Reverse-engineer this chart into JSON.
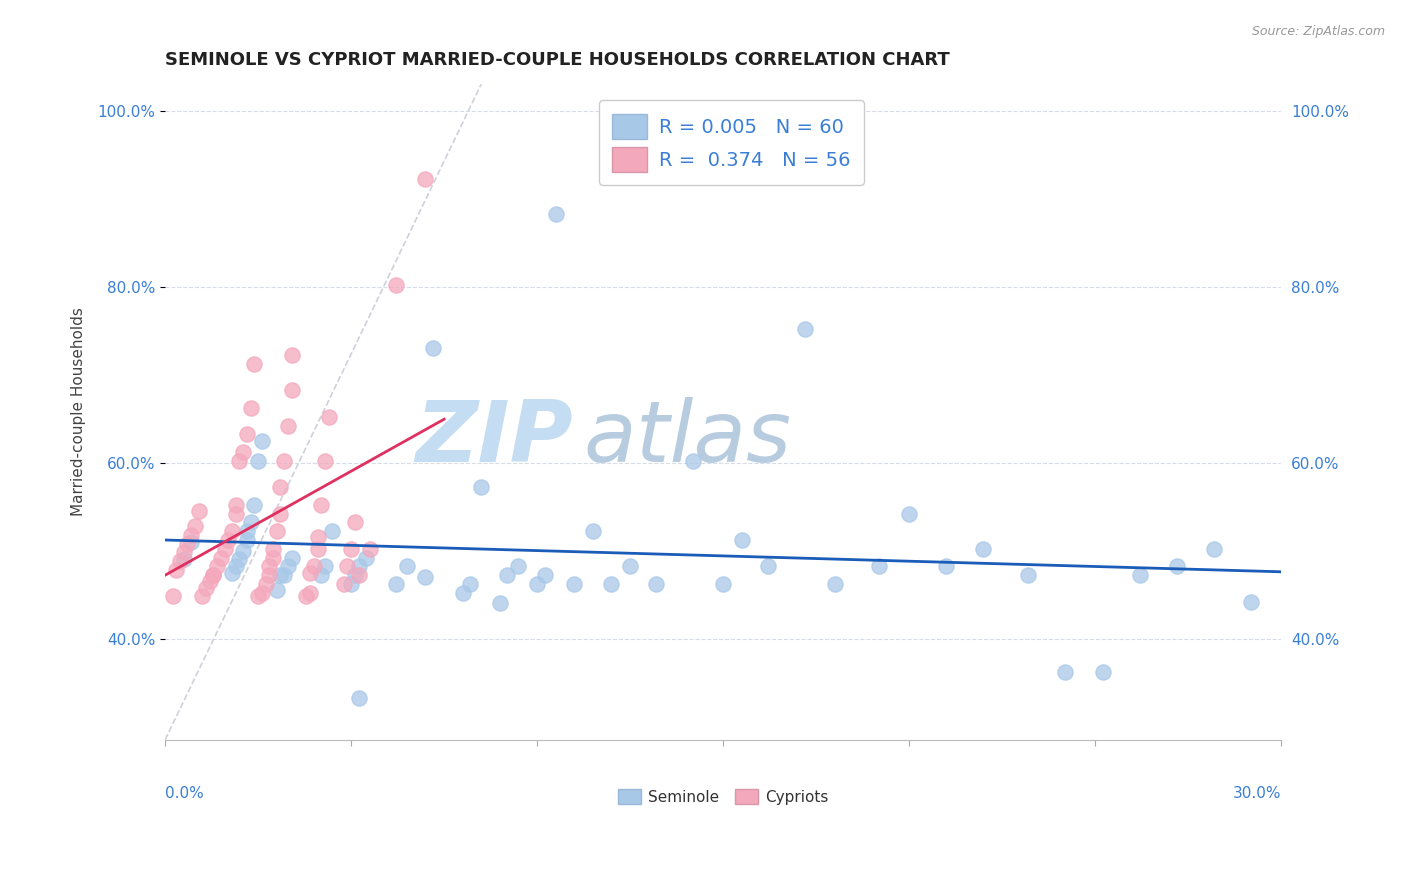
{
  "title": "SEMINOLE VS CYPRIOT MARRIED-COUPLE HOUSEHOLDS CORRELATION CHART",
  "source": "Source: ZipAtlas.com",
  "ylabel": "Married-couple Households",
  "seminole_R": "0.005",
  "seminole_N": "60",
  "cypriot_R": "0.374",
  "cypriot_N": "56",
  "seminole_color": "#a8c8e8",
  "cypriot_color": "#f4a8bc",
  "seminole_line_color": "#1a5cb8",
  "cypriot_line_color": "#e03060",
  "diagonal_color": "#d0d0dc",
  "grid_color": "#d8dce8",
  "watermark_zip_color": "#c8ddf0",
  "watermark_atlas_color": "#b8cce0",
  "background_color": "#ffffff",
  "legend_text_color": "#3a7fd5",
  "xlim": [
    0.0,
    0.3
  ],
  "ylim": [
    0.285,
    1.03
  ],
  "x_tick_positions": [
    0.0,
    0.05,
    0.1,
    0.15,
    0.2,
    0.25,
    0.3
  ],
  "y_tick_positions": [
    0.4,
    0.6,
    0.8,
    1.0
  ],
  "y_tick_labels": [
    "40.0%",
    "60.0%",
    "80.0%",
    "100.0%"
  ],
  "seminole_x": [
    0.005,
    0.007,
    0.018,
    0.019,
    0.02,
    0.021,
    0.022,
    0.022,
    0.023,
    0.024,
    0.025,
    0.026,
    0.03,
    0.031,
    0.032,
    0.033,
    0.034,
    0.042,
    0.043,
    0.045,
    0.05,
    0.051,
    0.052,
    0.054,
    0.062,
    0.065,
    0.07,
    0.072,
    0.08,
    0.082,
    0.085,
    0.09,
    0.092,
    0.095,
    0.1,
    0.102,
    0.11,
    0.115,
    0.12,
    0.125,
    0.132,
    0.142,
    0.15,
    0.155,
    0.162,
    0.172,
    0.18,
    0.192,
    0.2,
    0.21,
    0.22,
    0.232,
    0.242,
    0.252,
    0.262,
    0.272,
    0.282,
    0.292,
    0.052,
    0.105
  ],
  "seminole_y": [
    0.49,
    0.51,
    0.475,
    0.482,
    0.49,
    0.5,
    0.512,
    0.522,
    0.532,
    0.552,
    0.602,
    0.625,
    0.455,
    0.472,
    0.472,
    0.482,
    0.492,
    0.472,
    0.482,
    0.522,
    0.462,
    0.472,
    0.482,
    0.492,
    0.462,
    0.482,
    0.47,
    0.73,
    0.452,
    0.462,
    0.572,
    0.44,
    0.472,
    0.482,
    0.462,
    0.472,
    0.462,
    0.522,
    0.462,
    0.482,
    0.462,
    0.602,
    0.462,
    0.512,
    0.482,
    0.752,
    0.462,
    0.482,
    0.542,
    0.482,
    0.502,
    0.472,
    0.362,
    0.362,
    0.472,
    0.482,
    0.502,
    0.442,
    0.332,
    0.882
  ],
  "cypriot_x": [
    0.002,
    0.003,
    0.004,
    0.005,
    0.006,
    0.007,
    0.008,
    0.009,
    0.01,
    0.011,
    0.012,
    0.013,
    0.013,
    0.014,
    0.015,
    0.016,
    0.017,
    0.018,
    0.019,
    0.019,
    0.02,
    0.021,
    0.022,
    0.023,
    0.024,
    0.025,
    0.026,
    0.027,
    0.028,
    0.028,
    0.029,
    0.029,
    0.03,
    0.031,
    0.031,
    0.032,
    0.033,
    0.034,
    0.034,
    0.038,
    0.039,
    0.039,
    0.04,
    0.041,
    0.041,
    0.042,
    0.043,
    0.044,
    0.048,
    0.049,
    0.05,
    0.051,
    0.052,
    0.055,
    0.062,
    0.07
  ],
  "cypriot_y": [
    0.448,
    0.478,
    0.488,
    0.498,
    0.508,
    0.518,
    0.528,
    0.545,
    0.448,
    0.458,
    0.465,
    0.472,
    0.472,
    0.482,
    0.492,
    0.502,
    0.512,
    0.522,
    0.542,
    0.552,
    0.602,
    0.612,
    0.632,
    0.662,
    0.712,
    0.448,
    0.452,
    0.462,
    0.472,
    0.482,
    0.492,
    0.502,
    0.522,
    0.542,
    0.572,
    0.602,
    0.642,
    0.682,
    0.722,
    0.448,
    0.452,
    0.475,
    0.482,
    0.502,
    0.515,
    0.552,
    0.602,
    0.652,
    0.462,
    0.482,
    0.502,
    0.532,
    0.472,
    0.502,
    0.802,
    0.922
  ]
}
